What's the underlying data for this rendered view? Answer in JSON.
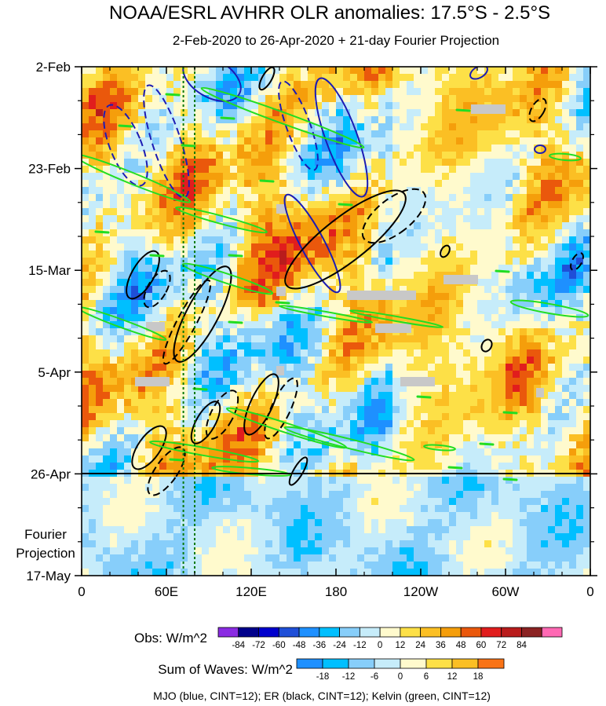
{
  "chart_data": {
    "type": "heatmap",
    "title": "NOAA/ESRL AVHRR OLR anomalies: 17.5°S - 2.5°S",
    "subtitle": "2-Feb-2020 to 26-Apr-2020 + 21-day Fourier Projection",
    "x_ticks": [
      "0",
      "60E",
      "120E",
      "180",
      "120W",
      "60W",
      "0"
    ],
    "x_tick_values": [
      0,
      60,
      120,
      180,
      240,
      300,
      360
    ],
    "y_ticks": [
      "2-Feb",
      "23-Feb",
      "15-Mar",
      "5-Apr",
      "26-Apr",
      "17-May"
    ],
    "projection_label": [
      "Fourier",
      "Projection"
    ],
    "projection_start": "26-Apr",
    "reference_lines_lon": [
      72,
      80
    ],
    "obs_colorbar": {
      "label": "Obs: W/m^2",
      "levels": [
        "-84",
        "-72",
        "-60",
        "-48",
        "-36",
        "-24",
        "-12",
        "0",
        "12",
        "24",
        "36",
        "48",
        "60",
        "72",
        "84"
      ],
      "colors": [
        "#8a2be2",
        "#00008b",
        "#0000cd",
        "#1f4fd8",
        "#1e90ff",
        "#00bfff",
        "#87cefa",
        "#c6ecfa",
        "#fffacd",
        "#fde047",
        "#fbbf24",
        "#f59e0b",
        "#ea580c",
        "#e11d1d",
        "#b91c1c",
        "#8b2323",
        "#ff69b4"
      ]
    },
    "waves_colorbar": {
      "label": "Sum of Waves: W/m^2",
      "levels": [
        "-18",
        "-12",
        "-6",
        "0",
        "6",
        "12",
        "18"
      ],
      "colors": [
        "#1e90ff",
        "#00bfff",
        "#87cefa",
        "#c6ecfa",
        "#fffacd",
        "#fde047",
        "#fbbf24",
        "#f97316"
      ]
    },
    "footnote": "MJO (blue, CINT=12); ER (black, CINT=12); Kelvin (green, CINT=12)",
    "series_colors": {
      "mjo": "#1c1cb4",
      "er": "#000000",
      "kelvin": "#22dd22"
    }
  }
}
